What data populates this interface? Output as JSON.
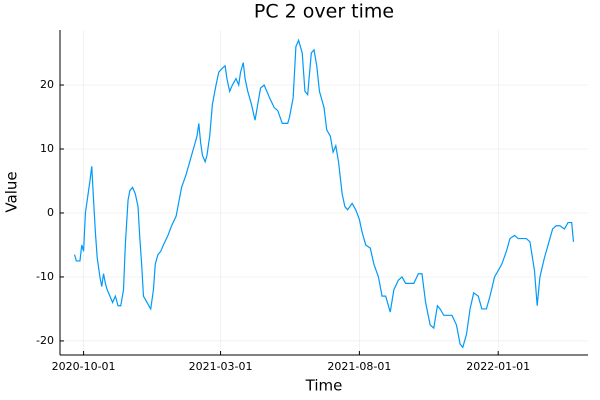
{
  "chart_data": {
    "type": "line",
    "title": "PC 2 over time",
    "x_label": "Time",
    "y_label": "Value",
    "color": "#009af9",
    "grid": true,
    "xlim": [
      "2020-09-05",
      "2022-04-10"
    ],
    "xticks": [
      "2020-10-01",
      "2021-03-01",
      "2021-08-01",
      "2022-01-01"
    ],
    "ylim": [
      -22.2,
      28.6
    ],
    "yticks": [
      -20,
      -10,
      0,
      10,
      20
    ],
    "x": [
      "2020-09-21",
      "2020-09-23",
      "2020-09-27",
      "2020-09-29",
      "2020-10-01",
      "2020-10-03",
      "2020-10-05",
      "2020-10-08",
      "2020-10-10",
      "2020-10-12",
      "2020-10-14",
      "2020-10-16",
      "2020-10-19",
      "2020-10-21",
      "2020-10-23",
      "2020-10-25",
      "2020-10-27",
      "2020-10-30",
      "2020-11-02",
      "2020-11-05",
      "2020-11-08",
      "2020-11-11",
      "2020-11-14",
      "2020-11-16",
      "2020-11-19",
      "2020-11-21",
      "2020-11-24",
      "2020-11-27",
      "2020-11-30",
      "2020-12-02",
      "2020-12-04",
      "2020-12-06",
      "2020-12-10",
      "2020-12-14",
      "2020-12-17",
      "2020-12-19",
      "2020-12-22",
      "2020-12-25",
      "2020-12-28",
      "2021-01-02",
      "2021-01-06",
      "2021-01-11",
      "2021-01-13",
      "2021-01-17",
      "2021-01-22",
      "2021-01-26",
      "2021-01-30",
      "2021-02-03",
      "2021-02-05",
      "2021-02-07",
      "2021-02-09",
      "2021-02-12",
      "2021-02-14",
      "2021-02-17",
      "2021-02-20",
      "2021-02-24",
      "2021-02-27",
      "2021-03-02",
      "2021-03-06",
      "2021-03-08",
      "2021-03-11",
      "2021-03-14",
      "2021-03-18",
      "2021-03-21",
      "2021-03-23",
      "2021-03-26",
      "2021-03-28",
      "2021-03-31",
      "2021-04-04",
      "2021-04-08",
      "2021-04-11",
      "2021-04-14",
      "2021-04-18",
      "2021-04-21",
      "2021-04-24",
      "2021-04-29",
      "2021-05-03",
      "2021-05-08",
      "2021-05-11",
      "2021-05-14",
      "2021-05-16",
      "2021-05-20",
      "2021-05-23",
      "2021-05-26",
      "2021-05-30",
      "2021-06-02",
      "2021-06-05",
      "2021-06-09",
      "2021-06-12",
      "2021-06-15",
      "2021-06-18",
      "2021-06-23",
      "2021-06-26",
      "2021-06-30",
      "2021-07-03",
      "2021-07-06",
      "2021-07-09",
      "2021-07-13",
      "2021-07-16",
      "2021-07-19",
      "2021-07-24",
      "2021-07-28",
      "2021-08-01",
      "2021-08-04",
      "2021-08-08",
      "2021-08-13",
      "2021-08-17",
      "2021-08-22",
      "2021-08-26",
      "2021-08-30",
      "2021-09-04",
      "2021-09-08",
      "2021-09-13",
      "2021-09-17",
      "2021-09-21",
      "2021-09-26",
      "2021-09-30",
      "2021-10-05",
      "2021-10-09",
      "2021-10-13",
      "2021-10-18",
      "2021-10-22",
      "2021-10-26",
      "2021-10-29",
      "2021-11-02",
      "2021-11-07",
      "2021-11-11",
      "2021-11-16",
      "2021-11-20",
      "2021-11-23",
      "2021-11-27",
      "2021-12-01",
      "2021-12-05",
      "2021-12-10",
      "2021-12-14",
      "2021-12-19",
      "2021-12-23",
      "2021-12-28",
      "2022-01-01",
      "2022-01-05",
      "2022-01-10",
      "2022-01-14",
      "2022-01-19",
      "2022-01-23",
      "2022-01-27",
      "2022-02-01",
      "2022-02-05",
      "2022-02-10",
      "2022-02-13",
      "2022-02-16",
      "2022-02-21",
      "2022-02-25",
      "2022-03-02",
      "2022-03-06",
      "2022-03-10",
      "2022-03-15",
      "2022-03-19",
      "2022-03-23",
      "2022-03-25"
    ],
    "values": [
      -6.5,
      -7.5,
      -7.5,
      -5,
      -6,
      0,
      2,
      5,
      7.3,
      2,
      -3,
      -7,
      -10,
      -11.5,
      -9.5,
      -11,
      -12,
      -13,
      -14,
      -13,
      -14.5,
      -14.5,
      -12,
      -5,
      2,
      3.5,
      4,
      3,
      1,
      -4,
      -8,
      -13,
      -14,
      -15,
      -12,
      -8,
      -6.5,
      -6,
      -5,
      -3.5,
      -2,
      -0.5,
      1,
      4,
      6,
      8,
      10,
      12,
      14,
      11,
      9,
      8,
      9,
      12,
      17,
      20,
      22,
      22.5,
      23,
      21,
      19,
      20,
      21,
      20,
      22,
      23.5,
      21,
      19,
      17,
      14.5,
      17,
      19.5,
      20,
      19,
      18,
      16.5,
      16,
      14,
      14,
      14,
      15,
      18,
      26,
      27,
      25,
      19,
      18.5,
      25,
      25.5,
      23,
      19,
      16.5,
      13,
      12,
      9.5,
      10.5,
      8,
      3,
      1,
      0.5,
      1.5,
      0.5,
      -1,
      -3,
      -5,
      -5.5,
      -8,
      -10,
      -13,
      -13,
      -15.5,
      -12,
      -10.5,
      -10,
      -11,
      -11,
      -11,
      -9.5,
      -9.5,
      -14,
      -17.5,
      -18,
      -14.5,
      -15,
      -16,
      -16,
      -16,
      -17.5,
      -20.5,
      -21,
      -19,
      -15,
      -12.5,
      -13,
      -15,
      -15,
      -13,
      -10,
      -9,
      -8,
      -6,
      -4,
      -3.5,
      -4,
      -4,
      -4,
      -4.5,
      -9,
      -14.5,
      -10,
      -7,
      -5,
      -2.5,
      -2,
      -2,
      -2.5,
      -1.5,
      -1.5,
      -4.5
    ]
  }
}
